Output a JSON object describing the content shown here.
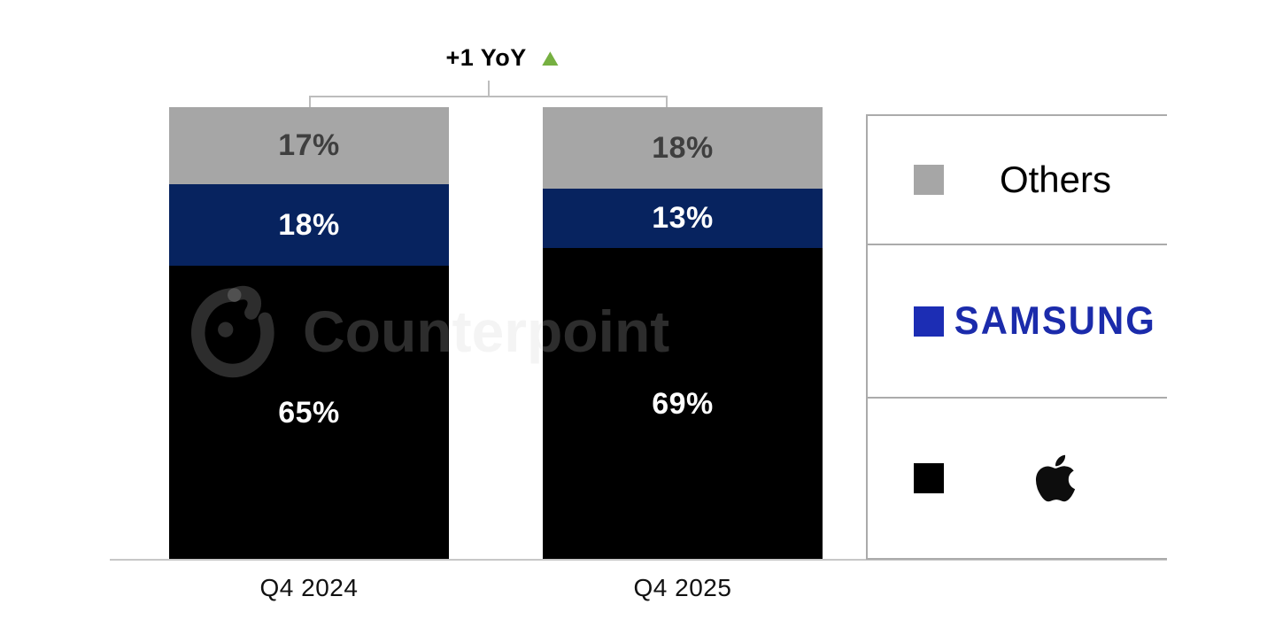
{
  "annotation": {
    "label": "+1 YoY",
    "triangle_icon": "up-triangle",
    "triangle_glyph": "▲",
    "triangle_color": "#76b041"
  },
  "watermark": {
    "text": "Counterpoint",
    "logo": "counterpoint-logo"
  },
  "chart_data": {
    "type": "bar",
    "stacked": true,
    "unit": "%",
    "title": "",
    "categories": [
      "Q4 2024",
      "Q4 2025"
    ],
    "series": [
      {
        "name": "Apple",
        "color": "#000000",
        "label_color": "#ffffff",
        "values": [
          65,
          69
        ]
      },
      {
        "name": "Samsung",
        "color": "#07235f",
        "label_color": "#ffffff",
        "values": [
          18,
          13
        ]
      },
      {
        "name": "Others",
        "color": "#a6a6a6",
        "label_color": "#3f3f3f",
        "values": [
          17,
          18
        ]
      }
    ],
    "annotations": [
      "+1 YoY (top segment, Others, Q4 2024 → Q4 2025)"
    ],
    "ylim": [
      0,
      100
    ],
    "grid": false,
    "legend_position": "right"
  },
  "legend": {
    "items": [
      {
        "name": "Others",
        "swatch": "#a6a6a6",
        "label": "Others",
        "label_color": "#000000"
      },
      {
        "name": "Samsung",
        "swatch": "#1c2db4",
        "label": "SAMSUNG",
        "label_color": "#1b2bab"
      },
      {
        "name": "Apple",
        "swatch": "#000000",
        "icon": "apple-logo",
        "icon_color": "#0d0d0d"
      }
    ]
  }
}
